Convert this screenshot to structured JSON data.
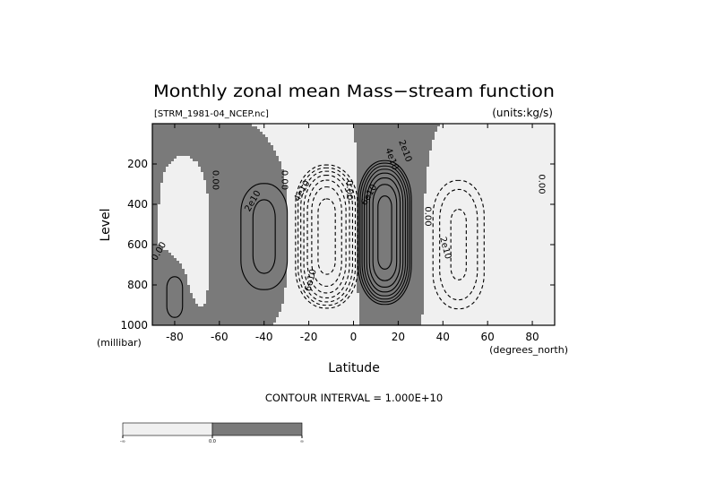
{
  "chart_data": {
    "type": "contour",
    "title": "Monthly zonal mean Mass−stream function",
    "file_label": "[STRM_1981-04_NCEP.nc]",
    "units_label": "(units:kg/s)",
    "ylabel": "Level",
    "y_unit_label": "(millibar)",
    "xlabel": "Latitude",
    "x_unit_label": "(degrees_north)",
    "xlim": [
      -90,
      90
    ],
    "ylim": [
      1000,
      0
    ],
    "x_ticks": [
      -80,
      -60,
      -40,
      -20,
      0,
      20,
      40,
      60,
      80
    ],
    "y_ticks": [
      200,
      400,
      600,
      800,
      1000
    ],
    "contour_interval_text": "CONTOUR INTERVAL = 1.000E+10",
    "shading": {
      "negative_color": "#f0f0f0",
      "positive_color": "#7a7a7a"
    },
    "colorbar": {
      "labels": [
        "-∞",
        "0.0",
        "∞"
      ]
    },
    "cells": [
      {
        "center_lat": -40,
        "halfwidth": 12,
        "center_level": 560,
        "half_depth": 330,
        "peak": 23000000000.0
      },
      {
        "center_lat": -12,
        "halfwidth": 13,
        "center_level": 560,
        "half_depth": 400,
        "peak": -75000000000.0
      },
      {
        "center_lat": 14,
        "halfwidth": 11,
        "center_level": 540,
        "half_depth": 400,
        "peak": 85000000000.0
      },
      {
        "center_lat": 47,
        "halfwidth": 12,
        "center_level": 600,
        "half_depth": 380,
        "peak": -32000000000.0
      },
      {
        "center_lat": -72,
        "halfwidth": 4,
        "center_level": 580,
        "half_depth": 250,
        "peak": -8000000000.0
      },
      {
        "center_lat": -80,
        "halfwidth": 5,
        "center_level": 860,
        "half_depth": 140,
        "peak": 16000000000.0
      }
    ],
    "contour_labels": [
      {
        "text": "0.00",
        "lat": -63,
        "level": 280,
        "rotate": 90
      },
      {
        "text": "2e10",
        "lat": -44,
        "level": 390,
        "rotate": -60
      },
      {
        "text": "0.00",
        "lat": -32,
        "level": 280,
        "rotate": 90
      },
      {
        "text": "4e10",
        "lat": -22,
        "level": 340,
        "rotate": -60
      },
      {
        "text": "6e10",
        "lat": -18,
        "level": 780,
        "rotate": -75
      },
      {
        "text": "0.00",
        "lat": -3,
        "level": 330,
        "rotate": 90
      },
      {
        "text": "6e10",
        "lat": 8,
        "level": 360,
        "rotate": -60
      },
      {
        "text": "4e10",
        "lat": 16,
        "level": 180,
        "rotate": 70
      },
      {
        "text": "2e10",
        "lat": 22,
        "level": 140,
        "rotate": 70
      },
      {
        "text": "0.00",
        "lat": 32,
        "level": 460,
        "rotate": 90
      },
      {
        "text": "2e10",
        "lat": 40,
        "level": 620,
        "rotate": 75
      },
      {
        "text": "0.00",
        "lat": 83,
        "level": 300,
        "rotate": 90
      },
      {
        "text": "0.00",
        "lat": -86,
        "level": 640,
        "rotate": -60
      }
    ]
  }
}
